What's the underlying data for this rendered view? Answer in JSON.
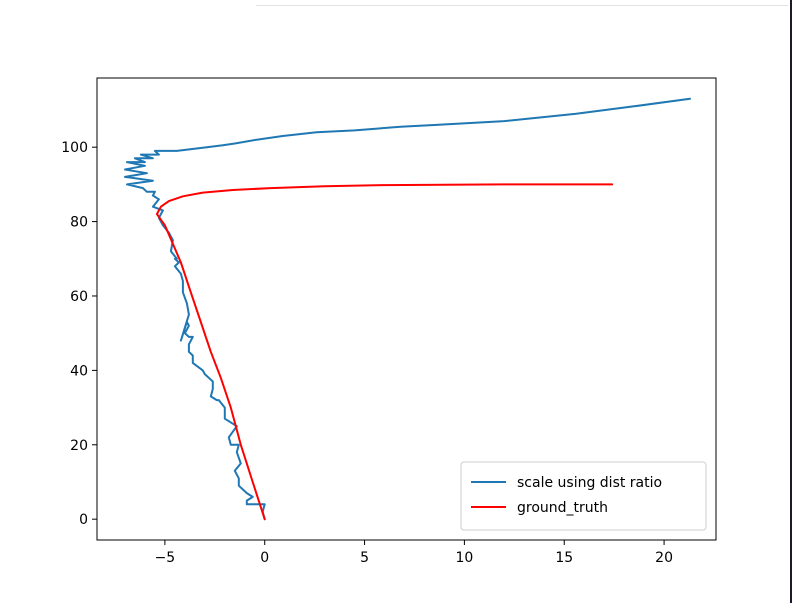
{
  "chart_data": {
    "type": "line",
    "title": "",
    "xlabel": "",
    "ylabel": "",
    "xlim": [
      -8.4,
      22.6
    ],
    "ylim": [
      -5.6,
      118.6
    ],
    "xticks": [
      -5,
      0,
      5,
      10,
      15,
      20
    ],
    "yticks": [
      0,
      20,
      40,
      60,
      80,
      100
    ],
    "xtick_labels": [
      "−5",
      "0",
      "5",
      "10",
      "15",
      "20"
    ],
    "ytick_labels": [
      "0",
      "20",
      "40",
      "60",
      "80",
      "100"
    ],
    "grid": false,
    "legend_position": "lower right",
    "series": [
      {
        "name": "scale using dist ratio",
        "color": "#1f77b4",
        "x": [
          0,
          -0.1,
          0,
          -0.9,
          -0.9,
          -0.6,
          -0.9,
          -1.3,
          -1.3,
          -1.5,
          -1.2,
          -1.4,
          -1.3,
          -1.7,
          -1.8,
          -1.4,
          -2.0,
          -2.0,
          -2.3,
          -2.4,
          -2.7,
          -2.6,
          -2.6,
          -2.8,
          -3.0,
          -3.1,
          -3.6,
          -3.6,
          -3.8,
          -3.8,
          -3.6,
          -3.8,
          -4.0,
          -3.8,
          -3.9,
          -4.2,
          -3.8,
          -3.9,
          -4.1,
          -4.1,
          -4.2,
          -4.5,
          -4.3,
          -4.5,
          -4.4,
          -4.7,
          -4.6,
          -4.8,
          -5.1,
          -5.3,
          -5.1,
          -5.6,
          -5.3,
          -5.6,
          -5.5,
          -5.9,
          -6.1,
          -6.9,
          -5.6,
          -7.0,
          -5.9,
          -7.0,
          -6.0,
          -6.9,
          -6.0,
          -6.5,
          -5.6,
          -6.2,
          -5.3,
          -5.5,
          -4.5,
          -4.4,
          -2.9,
          -2.1,
          -1.5,
          -0.4,
          0.9,
          2.6,
          4.5,
          6.8,
          8.6,
          12.0,
          15.6,
          18.5,
          21.3
        ],
        "y": [
          0,
          2,
          4,
          4,
          5,
          6,
          7,
          9,
          11,
          13,
          15,
          18,
          20,
          20,
          22,
          25,
          27,
          30,
          32,
          32,
          33,
          35,
          37,
          38,
          39,
          40,
          42,
          44,
          45,
          47,
          49,
          49,
          50,
          52,
          53,
          48,
          55,
          58,
          61,
          64,
          66,
          68,
          69,
          70,
          70,
          72,
          75,
          77,
          79,
          81,
          83,
          84,
          86,
          87,
          88,
          88,
          89,
          90,
          91,
          92,
          93,
          94,
          95,
          96,
          96,
          97,
          97,
          98,
          98,
          99,
          99,
          99,
          100,
          100.5,
          101,
          102,
          103,
          104,
          104.5,
          105.5,
          106,
          107,
          109,
          111,
          113
        ]
      },
      {
        "name": "ground_truth",
        "color": "#ff0000",
        "x": [
          0,
          -0.6,
          -1.2,
          -1.7,
          -2.2,
          -2.7,
          -3.2,
          -3.7,
          -4.2,
          -4.6,
          -5.0,
          -5.4,
          -5.2,
          -4.8,
          -4.1,
          -3.1,
          -1.6,
          0.3,
          3.0,
          6.0,
          9.0,
          12.0,
          15.0,
          17.4
        ],
        "y": [
          0,
          10,
          20,
          30,
          38,
          45,
          53,
          61,
          69,
          74,
          79,
          82,
          84,
          85.5,
          86.8,
          87.8,
          88.5,
          89.0,
          89.5,
          89.8,
          89.9,
          90.0,
          90.0,
          90.0
        ]
      }
    ]
  }
}
